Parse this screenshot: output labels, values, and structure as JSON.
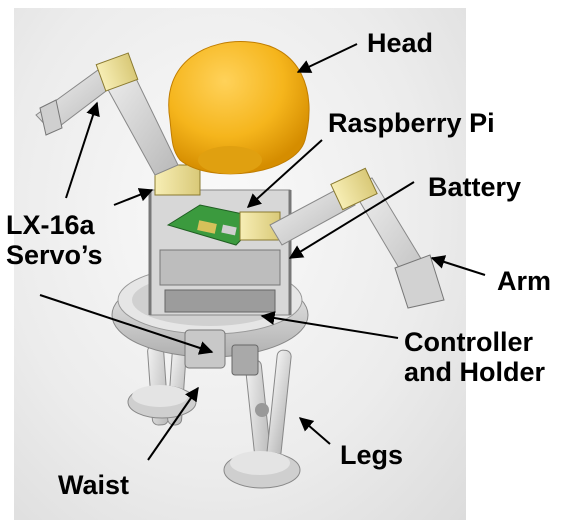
{
  "labels": {
    "head": "Head",
    "raspberry_pi": "Raspberry Pi",
    "battery": "Battery",
    "servos_line1": "LX-16a",
    "servos_line2": "Servo’s",
    "arm": "Arm",
    "controller_line1": "Controller",
    "controller_line2": "and Holder",
    "legs": "Legs",
    "waist": "Waist"
  },
  "colors": {
    "head": "#f5b51c",
    "frame": "#d9d9d9",
    "servo": "#f1e6a0",
    "board": "#3b9a3e",
    "background": "#eeeeee"
  }
}
